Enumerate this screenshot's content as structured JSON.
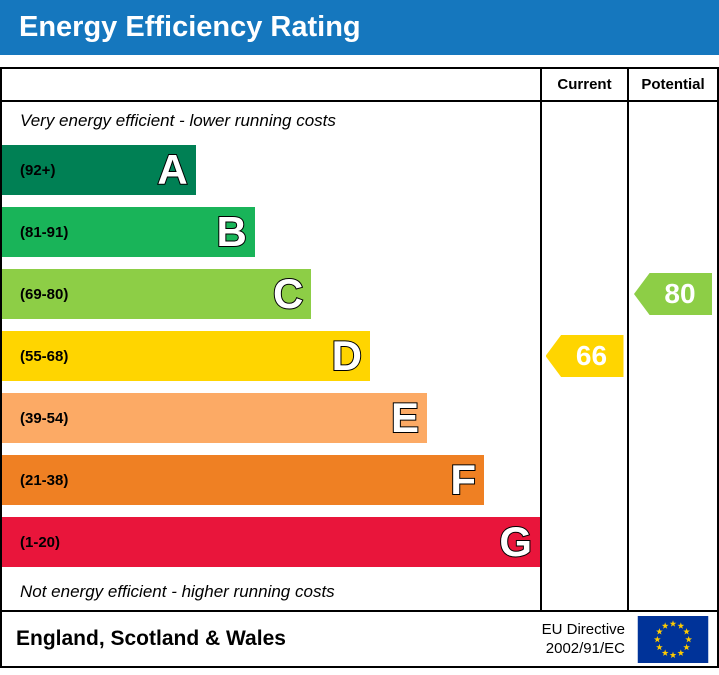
{
  "header": {
    "title": "Energy Efficiency Rating"
  },
  "columns": {
    "current_label": "Current",
    "potential_label": "Potential"
  },
  "chart_data": {
    "type": "bar",
    "title": "Energy Efficiency Rating",
    "top_caption": "Very energy efficient - lower running costs",
    "bottom_caption": "Not energy efficient - higher running costs",
    "bands": [
      {
        "letter": "A",
        "range": "(92+)",
        "color": "#008054",
        "width_pct": 36
      },
      {
        "letter": "B",
        "range": "(81-91)",
        "color": "#19b459",
        "width_pct": 47
      },
      {
        "letter": "C",
        "range": "(69-80)",
        "color": "#8dce46",
        "width_pct": 57.5
      },
      {
        "letter": "D",
        "range": "(55-68)",
        "color": "#ffd500",
        "width_pct": 68.4
      },
      {
        "letter": "E",
        "range": "(39-54)",
        "color": "#fcaa65",
        "width_pct": 79
      },
      {
        "letter": "F",
        "range": "(21-38)",
        "color": "#ef8023",
        "width_pct": 89.6
      },
      {
        "letter": "G",
        "range": "(1-20)",
        "color": "#e9153b",
        "width_pct": 100
      }
    ],
    "current": {
      "value": 66,
      "band": "D",
      "color": "#ffd500"
    },
    "potential": {
      "value": 80,
      "band": "C",
      "color": "#8dce46"
    }
  },
  "footer": {
    "region": "England, Scotland & Wales",
    "directive_line1": "EU Directive",
    "directive_line2": "2002/91/EC"
  }
}
